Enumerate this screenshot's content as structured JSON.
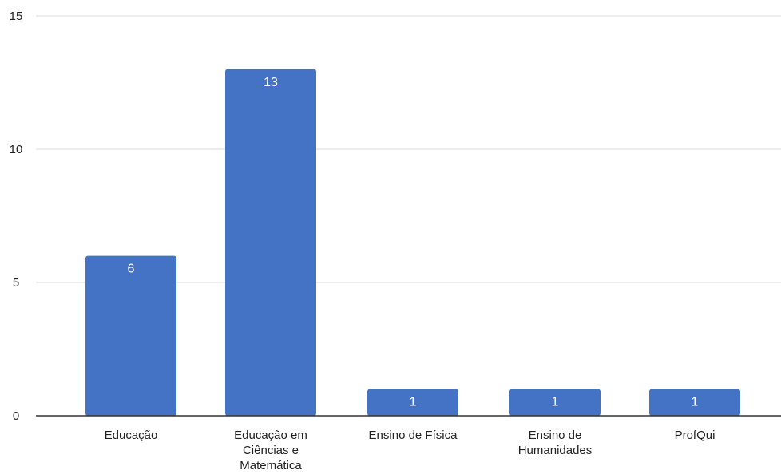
{
  "chart_data": {
    "type": "bar",
    "categories": [
      [
        "Educação"
      ],
      [
        "Educação em",
        "Ciências e",
        "Matemática"
      ],
      [
        "Ensino de Física"
      ],
      [
        "Ensino de",
        "Humanidades"
      ],
      [
        "ProfQui"
      ]
    ],
    "values": [
      6,
      13,
      1,
      1,
      1
    ],
    "data_labels": [
      "6",
      "13",
      "1",
      "1",
      "1"
    ],
    "y_ticks": [
      0,
      5,
      10,
      15
    ],
    "ylim": [
      0,
      15
    ],
    "grid": true,
    "legend": "none",
    "bar_color": "#4472C4",
    "title": "",
    "xlabel": "",
    "ylabel": ""
  }
}
